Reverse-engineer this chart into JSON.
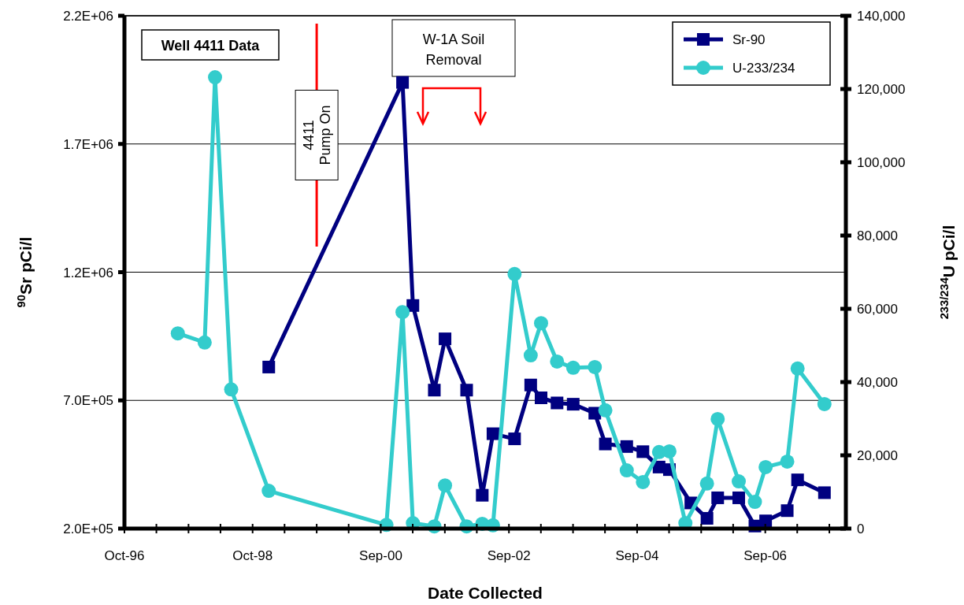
{
  "chart_data": {
    "type": "line",
    "title": "Well 4411 Data",
    "xlabel": "Date Collected",
    "ylabel": "$^{90}$Sr pCi/l",
    "y2label": "$^{233/234}$U pCi/l",
    "xlim": [
      "1996-10-01",
      "2008-01-01"
    ],
    "xticks": [
      {
        "value": "1996-10-01",
        "label": "Oct-96"
      },
      {
        "value": "1997-04-01",
        "label": null
      },
      {
        "value": "1997-10-01",
        "label": null
      },
      {
        "value": "1998-04-01",
        "label": null
      },
      {
        "value": "1998-10-01",
        "label": "Oct-98"
      },
      {
        "value": "1999-04-01",
        "label": null
      },
      {
        "value": "1999-10-01",
        "label": null
      },
      {
        "value": "2000-03-31",
        "label": null
      },
      {
        "value": "2000-09-30",
        "label": "Sep-00"
      },
      {
        "value": "2001-03-31",
        "label": null
      },
      {
        "value": "2001-09-30",
        "label": null
      },
      {
        "value": "2002-03-31",
        "label": null
      },
      {
        "value": "2002-09-30",
        "label": "Sep-02"
      },
      {
        "value": "2003-03-31",
        "label": null
      },
      {
        "value": "2003-09-30",
        "label": null
      },
      {
        "value": "2004-03-30",
        "label": null
      },
      {
        "value": "2004-09-29",
        "label": "Sep-04"
      },
      {
        "value": "2005-03-30",
        "label": null
      },
      {
        "value": "2005-09-29",
        "label": null
      },
      {
        "value": "2006-03-30",
        "label": null
      },
      {
        "value": "2006-09-29",
        "label": "Sep-06"
      },
      {
        "value": "2007-03-30",
        "label": null
      },
      {
        "value": "2007-09-29",
        "label": null
      }
    ],
    "ylim": [
      200000,
      2200000
    ],
    "yticks": [
      {
        "value": 200000,
        "label": "2.0E+05"
      },
      {
        "value": 700000,
        "label": "7.0E+05"
      },
      {
        "value": 1200000,
        "label": "1.2E+06"
      },
      {
        "value": 1700000,
        "label": "1.7E+06"
      },
      {
        "value": 2200000,
        "label": "2.2E+06"
      }
    ],
    "y2lim": [
      0,
      140000
    ],
    "y2ticks": [
      0,
      {
        "value": 20000,
        "label": "20,000"
      },
      {
        "value": 40000,
        "label": "40,000"
      },
      {
        "value": 60000,
        "label": "60,000"
      },
      {
        "value": 80000,
        "label": "80,000"
      },
      {
        "value": 100000,
        "label": "100,000"
      },
      {
        "value": 120000,
        "label": "120,000"
      },
      {
        "value": 140000,
        "label": "140,000"
      }
    ],
    "grid": "y",
    "legend": "top right",
    "ref_lines": [
      {
        "axis": "x",
        "value": "1999-10-01",
        "label": "4411 Pump On",
        "color": "#ff0000"
      }
    ],
    "annotations": [
      "W-1A Soil Removal"
    ],
    "series": [
      {
        "name": "Sr-90",
        "color": "#000080",
        "marker": "square",
        "x": [
          "1999-01",
          "2001-02",
          "2001-04",
          "2001-08",
          "2001-10",
          "2002-02",
          "2002-05",
          "2002-07",
          "2002-11",
          "2003-02",
          "2003-04",
          "2003-07",
          "2003-10",
          "2004-02",
          "2004-04",
          "2004-08",
          "2004-11",
          "2005-02",
          "2005-04",
          "2005-08",
          "2005-11",
          "2006-01",
          "2006-05",
          "2006-08",
          "2006-10",
          "2007-02",
          "2007-04",
          "2007-09"
        ],
        "values": [
          830000,
          1940000,
          1070000,
          740000,
          940000,
          740000,
          330000,
          570000,
          550000,
          760000,
          710000,
          690000,
          685000,
          650000,
          530000,
          520000,
          500000,
          440000,
          430000,
          300000,
          240000,
          320000,
          320000,
          210000,
          230000,
          270000,
          390000,
          340000
        ]
      },
      {
        "name": "U-233/234",
        "color": "#33cccc",
        "marker": "circle",
        "axis": "y2",
        "x": [
          "1997-08",
          "1998-01",
          "1998-03",
          "1998-06",
          "1999-01",
          "2000-11",
          "2001-02",
          "2001-04",
          "2001-08",
          "2001-10",
          "2002-02",
          "2002-05",
          "2002-07",
          "2002-11",
          "2003-02",
          "2003-04",
          "2003-07",
          "2003-10",
          "2004-02",
          "2004-04",
          "2004-08",
          "2004-11",
          "2005-02",
          "2005-04",
          "2005-07",
          "2005-11",
          "2006-01",
          "2006-05",
          "2006-08",
          "2006-10",
          "2007-02",
          "2007-04",
          "2007-09"
        ],
        "values": [
          53300,
          50800,
          123200,
          38000,
          10300,
          1000,
          59100,
          1500,
          600,
          11800,
          600,
          1300,
          900,
          69500,
          47300,
          56100,
          45600,
          43900,
          44100,
          32300,
          15900,
          12700,
          20900,
          21100,
          1500,
          12300,
          29900,
          12900,
          7300,
          16800,
          18300,
          43700,
          34000
        ]
      }
    ]
  }
}
